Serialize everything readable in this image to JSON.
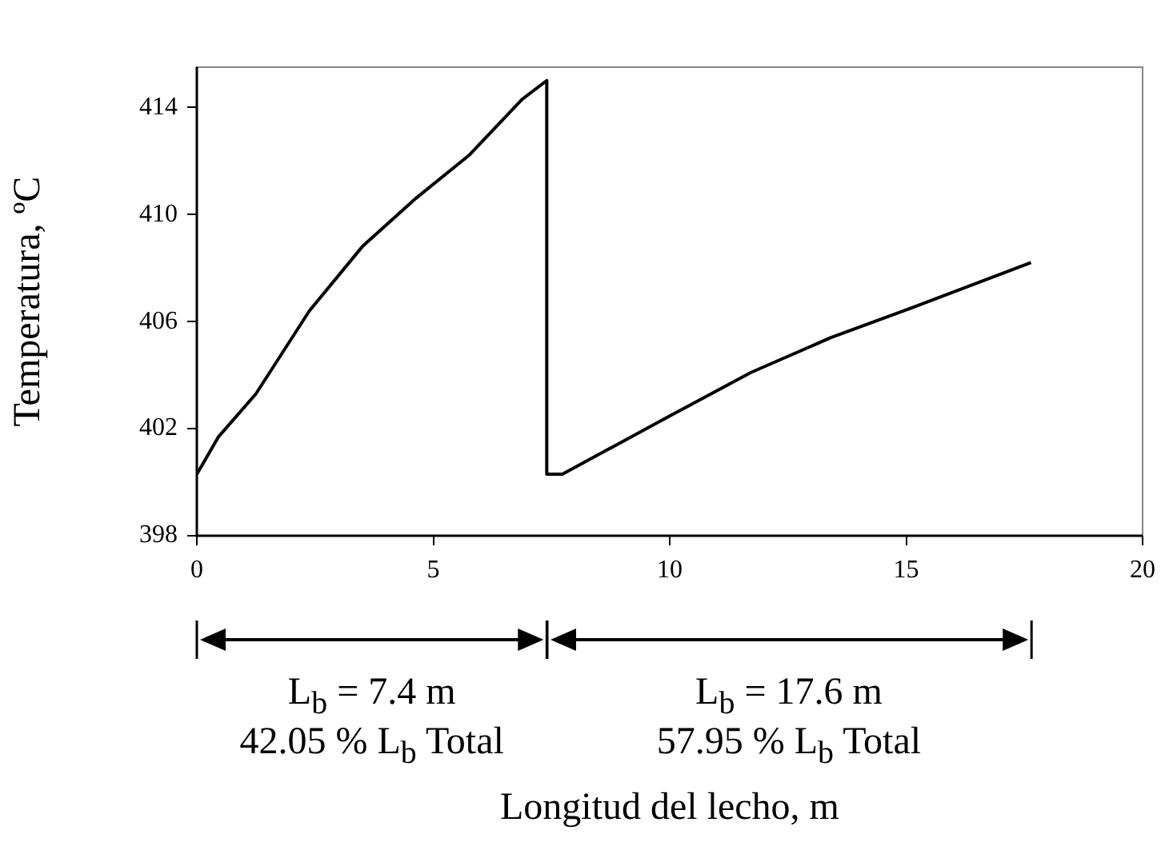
{
  "chart_data": {
    "type": "line",
    "ylabel": "Temperatura, ºC",
    "x": [
      0,
      0.46,
      1.25,
      2.38,
      3.5,
      4.63,
      5.75,
      6.88,
      7.4,
      7.4,
      7.73,
      10.03,
      11.72,
      13.41,
      15.1,
      17.64
    ],
    "series": [
      {
        "color": "#000000",
        "values": [
          400.3,
          401.7,
          403.3,
          406.4,
          408.8,
          410.6,
          412.2,
          414.3,
          415.0,
          400.3,
          400.3,
          402.5,
          404.1,
          405.4,
          406.5,
          408.2
        ]
      }
    ],
    "xlim": [
      0,
      20
    ],
    "xticks": [
      0,
      5,
      10,
      15,
      20
    ],
    "ylim": [
      398,
      415.5
    ],
    "yticks": [
      398,
      402,
      406,
      410,
      414
    ],
    "grid": false,
    "legend": false,
    "marker": "none",
    "line_style": "solid",
    "annotations": [
      "L$_{b}$ = 7.4 m",
      "42.05 % L$_{b}$ Total",
      "L$_{b}$ = 17.6 m",
      "57.95 % L$_{b}$ Total",
      "Longitud del lecho, m"
    ]
  }
}
